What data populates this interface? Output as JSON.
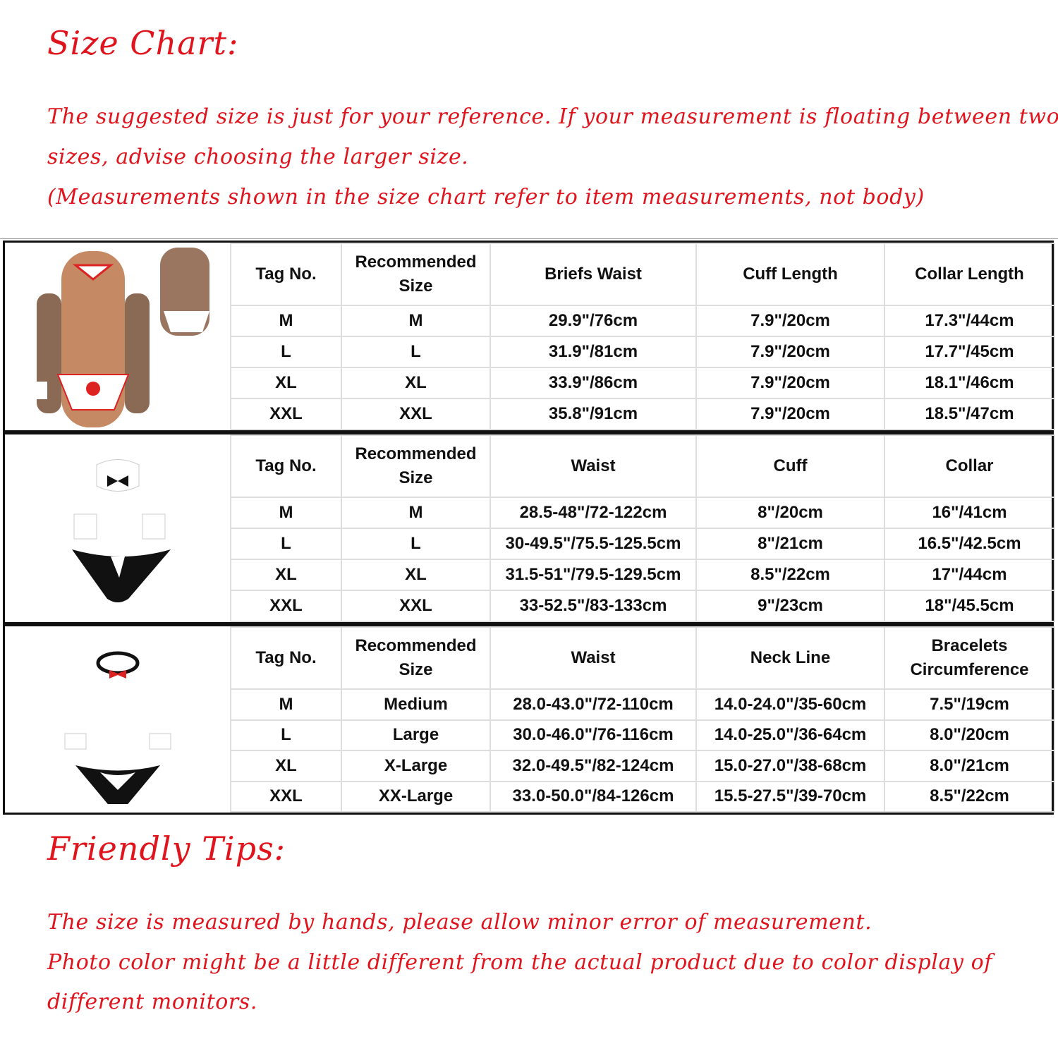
{
  "title": "Size Chart:",
  "intro": [
    "The suggested size is just for your reference. If your measurement is floating between two",
    "sizes, advise choosing the larger size.",
    "(Measurements shown in the size chart refer to item measurements, not body)"
  ],
  "tables": [
    {
      "image": "nurse-costume-photo",
      "headers": [
        "Tag No.",
        "Recommended Size",
        "Briefs Waist",
        "Cuff Length",
        "Collar Length"
      ],
      "rows": [
        [
          "M",
          "M",
          "29.9\"/76cm",
          "7.9\"/20cm",
          "17.3\"/44cm"
        ],
        [
          "L",
          "L",
          "31.9\"/81cm",
          "7.9\"/20cm",
          "17.7\"/45cm"
        ],
        [
          "XL",
          "XL",
          "33.9\"/86cm",
          "7.9\"/20cm",
          "18.1\"/46cm"
        ],
        [
          "XXL",
          "XXL",
          "35.8\"/91cm",
          "7.9\"/20cm",
          "18.5\"/47cm"
        ]
      ]
    },
    {
      "image": "tuxedo-collar-cuffs-thong",
      "headers": [
        "Tag No.",
        "Recommended Size",
        "Waist",
        "Cuff",
        "Collar"
      ],
      "rows": [
        [
          "M",
          "M",
          "28.5-48\"/72-122cm",
          "8\"/20cm",
          "16\"/41cm"
        ],
        [
          "L",
          "L",
          "30-49.5\"/75.5-125.5cm",
          "8\"/21cm",
          "16.5\"/42.5cm"
        ],
        [
          "XL",
          "XL",
          "31.5-51\"/79.5-129.5cm",
          "8.5\"/22cm",
          "17\"/44cm"
        ],
        [
          "XXL",
          "XXL",
          "33-52.5\"/83-133cm",
          "9\"/23cm",
          "18\"/45.5cm"
        ]
      ]
    },
    {
      "image": "bowtie-cuffs-thong",
      "headers": [
        "Tag No.",
        "Recommended Size",
        "Waist",
        "Neck Line",
        "Bracelets Circumference"
      ],
      "rows": [
        [
          "M",
          "Medium",
          "28.0-43.0\"/72-110cm",
          "14.0-24.0\"/35-60cm",
          "7.5\"/19cm"
        ],
        [
          "L",
          "Large",
          "30.0-46.0\"/76-116cm",
          "14.0-25.0\"/36-64cm",
          "8.0\"/20cm"
        ],
        [
          "XL",
          "X-Large",
          "32.0-49.5\"/82-124cm",
          "15.0-27.0\"/38-68cm",
          "8.0\"/21cm"
        ],
        [
          "XXL",
          "XX-Large",
          "33.0-50.0\"/84-126cm",
          "15.5-27.5\"/39-70cm",
          "8.5\"/22cm"
        ]
      ]
    }
  ],
  "tips_title": "Friendly Tips:",
  "tips": [
    "The size is measured by hands, please allow minor error of measurement.",
    "Photo color might be a little different from the actual product due to color display of",
    "different monitors."
  ],
  "colors": {
    "accent": "#e0141c",
    "border": "#111111",
    "grid": "#dddddd"
  }
}
